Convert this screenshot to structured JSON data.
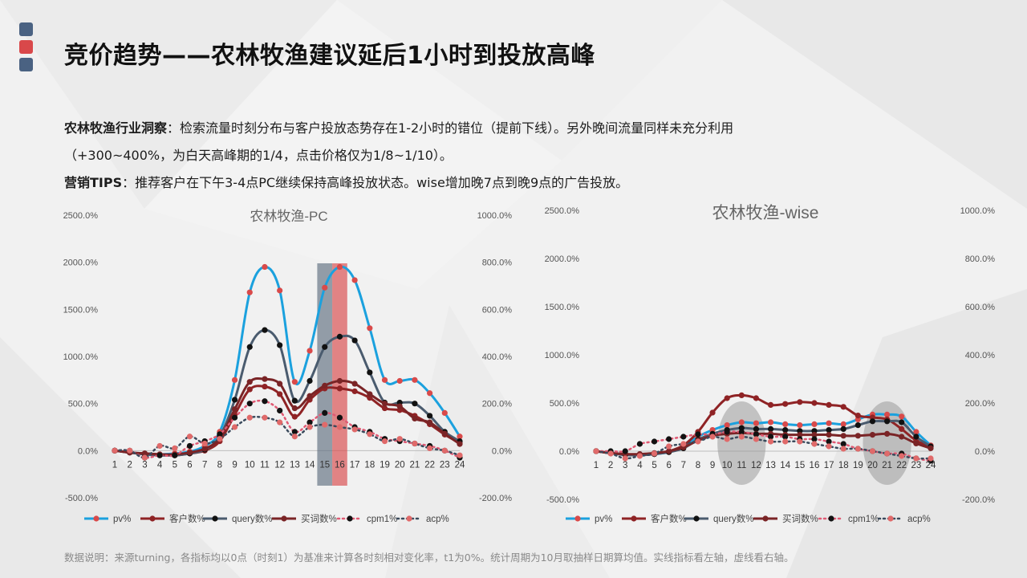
{
  "slide": {
    "title": "竞价趋势——农林牧渔建议延后1小时到投放高峰",
    "insight_label": "农林牧渔行业洞察",
    "insight_text_1": "：检索流量时刻分布与客户投放态势存在1-2小时的错位（提前下线）。另外晚间流量同样未充分利用",
    "insight_text_2": "（+300~400%，为白天高峰期的1/4，点击价格仅为1/8~1/10）。",
    "tips_label": "营销TIPS",
    "tips_text": "：推荐客户在下午3-4点PC继续保持高峰投放状态。wise增加晚7点到晚9点的广告投放。",
    "footer": "数据说明：来源turning，各指标均以0点（时刻1）为基准来计算各时刻相对变化率，t1为0%。统计周期为10月取抽样日期算均值。实线指标看左轴，虚线看右轴。"
  },
  "colors": {
    "deco_top": "#4a6282",
    "deco_mid": "#d9484a",
    "deco_bottom": "#4a6282",
    "pv": "#1ba1de",
    "customers": "#8f2325",
    "query": "#4a5b6e",
    "bid_words": "#7a2426",
    "cpm1": "#e05a74",
    "acp": "#3a4a5c",
    "highlight_gray": "#5f6f80",
    "highlight_red": "#d9484a",
    "ellipse": "#9a9a9a"
  },
  "chart_data": [
    {
      "type": "line",
      "title": "农林牧渔-PC",
      "x": [
        1,
        2,
        3,
        4,
        5,
        6,
        7,
        8,
        9,
        10,
        11,
        12,
        13,
        14,
        15,
        16,
        17,
        18,
        19,
        20,
        21,
        22,
        23,
        24
      ],
      "y_left_ticks": [
        "2500.0%",
        "2000.0%",
        "1500.0%",
        "1000.0%",
        "500.0%",
        "0.0%",
        "-500.0%"
      ],
      "y_right_ticks": [
        "1000.0%",
        "800.0%",
        "600.0%",
        "400.0%",
        "200.0%",
        "0.0%",
        "-200.0%"
      ],
      "ylim_left": [
        -500,
        2500
      ],
      "ylim_right": [
        -200,
        1000
      ],
      "highlight_hours": [
        15,
        16
      ],
      "series": [
        {
          "name": "pv%",
          "axis": "left",
          "style": "solid",
          "values": [
            0,
            -20,
            -30,
            -40,
            -30,
            -10,
            50,
            200,
            750,
            1680,
            1950,
            1700,
            730,
            1060,
            1730,
            1950,
            1810,
            1300,
            750,
            740,
            750,
            610,
            400,
            150
          ]
        },
        {
          "name": "客户数%",
          "axis": "left",
          "style": "solid",
          "values": [
            0,
            -20,
            -30,
            -40,
            -50,
            -30,
            0,
            100,
            380,
            650,
            680,
            600,
            360,
            540,
            660,
            660,
            630,
            560,
            450,
            430,
            370,
            280,
            170,
            80
          ]
        },
        {
          "name": "query数%",
          "axis": "left",
          "style": "solid",
          "values": [
            0,
            -20,
            -40,
            -50,
            -50,
            -30,
            10,
            150,
            540,
            1100,
            1280,
            1120,
            530,
            740,
            1100,
            1210,
            1170,
            830,
            510,
            510,
            500,
            370,
            200,
            100
          ]
        },
        {
          "name": "买词数%",
          "axis": "left",
          "style": "solid",
          "values": [
            0,
            -20,
            -30,
            -40,
            -40,
            -20,
            20,
            130,
            440,
            730,
            760,
            710,
            450,
            580,
            690,
            740,
            710,
            600,
            500,
            470,
            340,
            300,
            180,
            70
          ]
        },
        {
          "name": "cpm1%",
          "axis": "right",
          "style": "dotted",
          "values": [
            0,
            0,
            -30,
            -20,
            -20,
            20,
            40,
            70,
            140,
            200,
            210,
            170,
            80,
            120,
            160,
            140,
            100,
            80,
            50,
            40,
            30,
            20,
            0,
            -30
          ]
        },
        {
          "name": "acp%",
          "axis": "right",
          "style": "dotted",
          "values": [
            0,
            0,
            -30,
            20,
            10,
            60,
            30,
            50,
            100,
            140,
            140,
            120,
            60,
            100,
            110,
            100,
            90,
            70,
            40,
            50,
            30,
            10,
            0,
            -20
          ]
        }
      ]
    },
    {
      "type": "line",
      "title": "农林牧渔-wise",
      "x": [
        1,
        2,
        3,
        4,
        5,
        6,
        7,
        8,
        9,
        10,
        11,
        12,
        13,
        14,
        15,
        16,
        17,
        18,
        19,
        20,
        21,
        22,
        23,
        24
      ],
      "y_left_ticks": [
        "2500.0%",
        "2000.0%",
        "1500.0%",
        "1000.0%",
        "500.0%",
        "0.0%",
        "-500.0%"
      ],
      "y_right_ticks": [
        "1000.0%",
        "800.0%",
        "600.0%",
        "400.0%",
        "200.0%",
        "0.0%",
        "-200.0%"
      ],
      "ylim_left": [
        -500,
        2500
      ],
      "ylim_right": [
        -200,
        1000
      ],
      "highlight_ellipses": [
        [
          10,
          12
        ],
        [
          20,
          22
        ]
      ],
      "series": [
        {
          "name": "pv%",
          "axis": "left",
          "style": "solid",
          "values": [
            0,
            -20,
            -30,
            -40,
            -30,
            -10,
            50,
            150,
            220,
            270,
            300,
            290,
            300,
            280,
            270,
            280,
            290,
            280,
            330,
            380,
            380,
            360,
            200,
            60
          ]
        },
        {
          "name": "客户数%",
          "axis": "left",
          "style": "solid",
          "values": [
            0,
            -20,
            -30,
            -40,
            -30,
            0,
            60,
            200,
            400,
            550,
            580,
            550,
            480,
            490,
            510,
            500,
            480,
            460,
            370,
            350,
            330,
            230,
            110,
            50
          ]
        },
        {
          "name": "query数%",
          "axis": "left",
          "style": "solid",
          "values": [
            0,
            -20,
            -40,
            -40,
            -30,
            -10,
            30,
            120,
            180,
            220,
            240,
            230,
            230,
            220,
            210,
            210,
            220,
            230,
            270,
            310,
            310,
            300,
            150,
            50
          ]
        },
        {
          "name": "买词数%",
          "axis": "left",
          "style": "solid",
          "values": [
            0,
            -20,
            -30,
            -30,
            -20,
            0,
            40,
            110,
            160,
            180,
            190,
            180,
            180,
            170,
            170,
            170,
            170,
            160,
            160,
            170,
            180,
            150,
            80,
            30
          ]
        },
        {
          "name": "cpm1%",
          "axis": "right",
          "style": "dotted",
          "values": [
            0,
            0,
            0,
            30,
            40,
            50,
            60,
            70,
            70,
            80,
            80,
            70,
            60,
            60,
            50,
            50,
            40,
            30,
            10,
            0,
            -10,
            -10,
            -30,
            -40
          ]
        },
        {
          "name": "acp%",
          "axis": "right",
          "style": "dotted",
          "values": [
            0,
            -10,
            -30,
            -20,
            -10,
            20,
            30,
            40,
            60,
            50,
            60,
            50,
            40,
            40,
            40,
            30,
            20,
            10,
            10,
            0,
            -10,
            -20,
            -30,
            -30
          ]
        }
      ]
    }
  ]
}
